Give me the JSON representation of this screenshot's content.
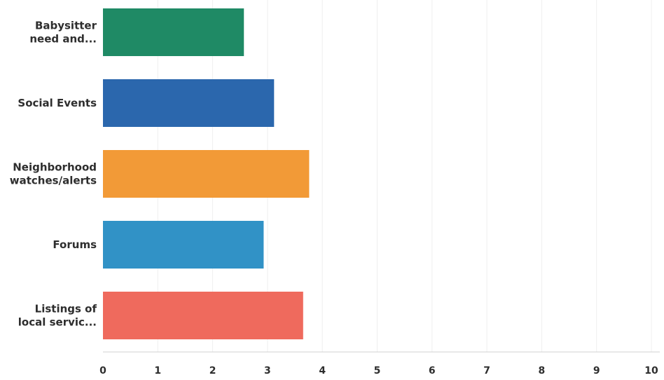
{
  "chart_data": {
    "type": "bar",
    "orientation": "horizontal",
    "title": "",
    "xlabel": "",
    "ylabel": "",
    "xlim": [
      0,
      10
    ],
    "ticks": [
      "0",
      "1",
      "2",
      "3",
      "4",
      "5",
      "6",
      "7",
      "8",
      "9",
      "10"
    ],
    "grid": true,
    "categories": [
      [
        "Babysitter",
        "need and..."
      ],
      [
        "Social Events"
      ],
      [
        "Neighborhood",
        "watches/alerts"
      ],
      [
        "Forums"
      ],
      [
        "Listings of",
        "local servic..."
      ]
    ],
    "values": [
      2.57,
      3.12,
      3.76,
      2.93,
      3.65
    ],
    "colors": [
      "#1f8a65",
      "#2b67ad",
      "#f29a37",
      "#3192c6",
      "#ef6a5d"
    ]
  }
}
